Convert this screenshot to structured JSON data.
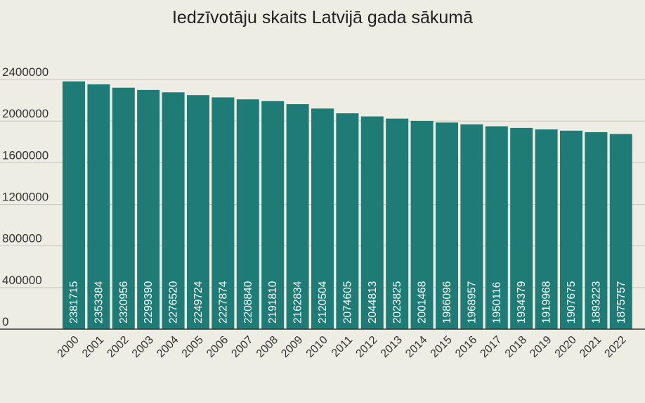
{
  "chart_data": {
    "type": "bar",
    "title": "Iedzīvotāju skaits Latvijā gada sākumā",
    "xlabel": "",
    "ylabel": "",
    "ylim": [
      0,
      2400000
    ],
    "yticks": [
      "0",
      "400000",
      "800000",
      "1200000",
      "1600000",
      "2000000",
      "2400000"
    ],
    "ytick_values": [
      0,
      400000,
      800000,
      1200000,
      1600000,
      2000000,
      2400000
    ],
    "grid": true,
    "bar_color": "#1e7b75",
    "grid_color": "#c9c8bf",
    "categories": [
      "2000",
      "2001",
      "2002",
      "2003",
      "2004",
      "2005",
      "2006",
      "2007",
      "2008",
      "2009",
      "2010",
      "2011",
      "2012",
      "2013",
      "2014",
      "2015",
      "2016",
      "2017",
      "2018",
      "2019",
      "2020",
      "2021",
      "2022"
    ],
    "values": [
      2381715,
      2353384,
      2320956,
      2299390,
      2276520,
      2249724,
      2227874,
      2208840,
      2191810,
      2162834,
      2120504,
      2074605,
      2044813,
      2023825,
      2001468,
      1986096,
      1968957,
      1950116,
      1934379,
      1919968,
      1907675,
      1893223,
      1875757
    ],
    "data_labels": [
      "2381715",
      "2353384",
      "2320956",
      "2299390",
      "2276520",
      "2249724",
      "2227874",
      "2208840",
      "2191810",
      "2162834",
      "2120504",
      "2074605",
      "2044813",
      "2023825",
      "2001468",
      "1986096",
      "1968957",
      "1950116",
      "1934379",
      "1919968",
      "1907675",
      "1893223",
      "1875757"
    ]
  }
}
